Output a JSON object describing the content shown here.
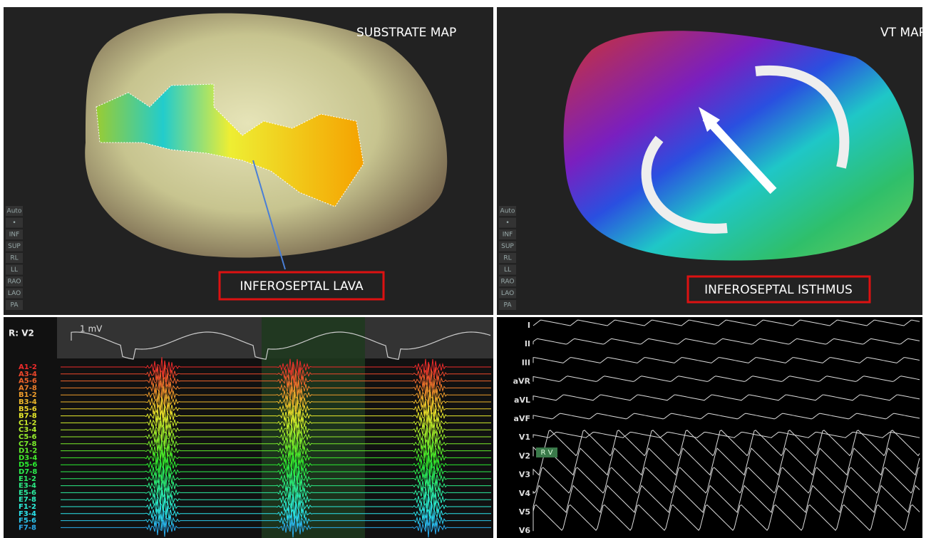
{
  "substrate_panel": {
    "title": "SUBSTRATE MAP",
    "callout": "INFEROSEPTAL LAVA",
    "toolbar": [
      "Auto",
      "•",
      "INF",
      "SUP",
      "RL",
      "LL",
      "RAO",
      "LAO",
      "PA"
    ]
  },
  "vt_panel": {
    "title": "VT MAP",
    "callout": "INFEROSEPTAL ISTHMUS",
    "toolbar": [
      "Auto",
      "•",
      "INF",
      "SUP",
      "RL",
      "LL",
      "RAO",
      "LAO",
      "PA"
    ]
  },
  "electrograms": {
    "reference_label": "R: V2",
    "scale_label": "1 mV",
    "channels": [
      "A1-2",
      "A3-4",
      "A5-6",
      "A7-8",
      "B1-2",
      "B3-4",
      "B5-6",
      "B7-8",
      "C1-2",
      "C3-4",
      "C5-6",
      "C7-8",
      "D1-2",
      "D3-4",
      "D5-6",
      "D7-8",
      "E1-2",
      "E3-4",
      "E5-6",
      "E7-8",
      "F1-2",
      "F3-4",
      "F5-6",
      "F7-8"
    ]
  },
  "ecg": {
    "leads": [
      "I",
      "II",
      "III",
      "aVR",
      "aVL",
      "aVF",
      "V1",
      "V2",
      "V3",
      "V4",
      "V5",
      "V6"
    ],
    "marker": "R V"
  }
}
